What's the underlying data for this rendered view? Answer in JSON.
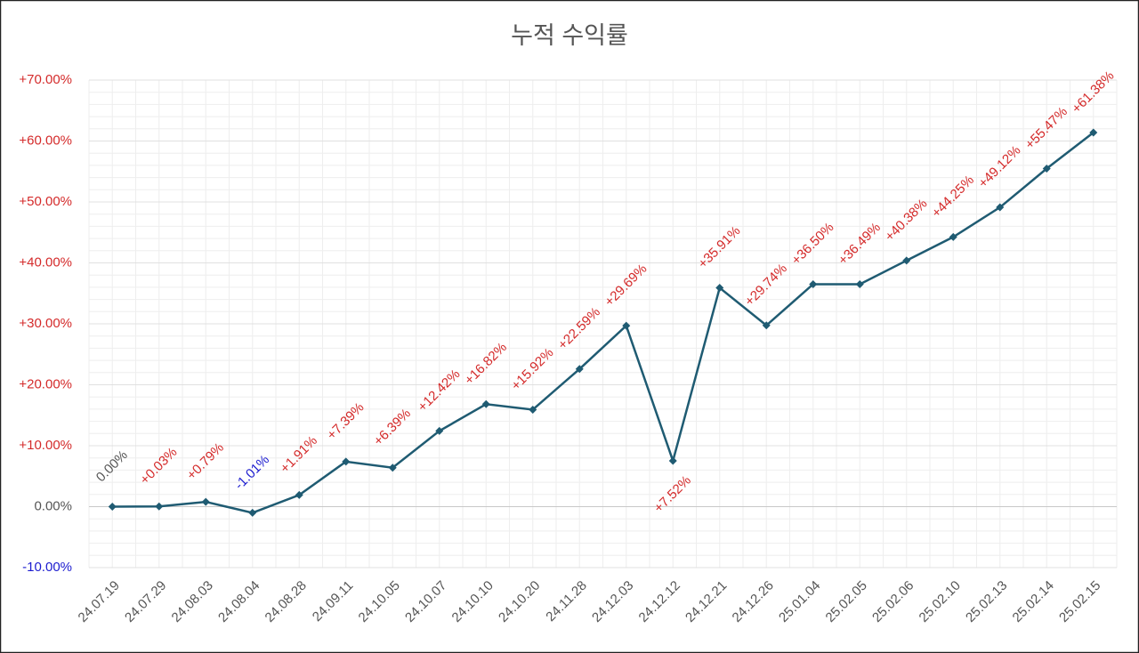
{
  "chart_data": {
    "type": "line",
    "title": "누적 수익률",
    "categories": [
      "24.07.19",
      "24.07.29",
      "24.08.03",
      "24.08.04",
      "24.08.28",
      "24.09.11",
      "24.10.05",
      "24.10.07",
      "24.10.10",
      "24.10.20",
      "24.11.28",
      "24.12.03",
      "24.12.12",
      "24.12.21",
      "24.12.26",
      "25.01.04",
      "25.02.05",
      "25.02.06",
      "25.02.10",
      "25.02.13",
      "25.02.14",
      "25.02.15"
    ],
    "series": [
      {
        "color": "#1f5b72",
        "values": [
          0.0,
          0.03,
          0.79,
          -1.01,
          1.91,
          7.39,
          6.39,
          12.42,
          16.82,
          15.92,
          22.59,
          29.69,
          7.52,
          35.91,
          29.74,
          36.5,
          36.49,
          40.38,
          44.25,
          49.12,
          55.47,
          61.38
        ],
        "value_labels": [
          "0.00%",
          "+0.03%",
          "+0.79%",
          "-1.01%",
          "+1.91%",
          "+7.39%",
          "+6.39%",
          "+12.42%",
          "+16.82%",
          "+15.92%",
          "+22.59%",
          "+29.69%",
          "+7.52%",
          "+35.91%",
          "+29.74%",
          "+36.50%",
          "+36.49%",
          "+40.38%",
          "+44.25%",
          "+49.12%",
          "+55.47%",
          "+61.38%"
        ]
      }
    ],
    "ylim": [
      -10,
      70
    ],
    "yticks": [
      {
        "value": -10,
        "label": "-10.00%"
      },
      {
        "value": 0,
        "label": "0.00%"
      },
      {
        "value": 10,
        "label": "+10.00%"
      },
      {
        "value": 20,
        "label": "+20.00%"
      },
      {
        "value": 30,
        "label": "+30.00%"
      },
      {
        "value": 40,
        "label": "+40.00%"
      },
      {
        "value": 50,
        "label": "+50.00%"
      },
      {
        "value": 60,
        "label": "+60.00%"
      },
      {
        "value": 70,
        "label": "+70.00%"
      }
    ],
    "grid": true,
    "positive_color": "#d42a2a",
    "negative_color": "#1c1ccf",
    "zero_color": "#555555"
  }
}
